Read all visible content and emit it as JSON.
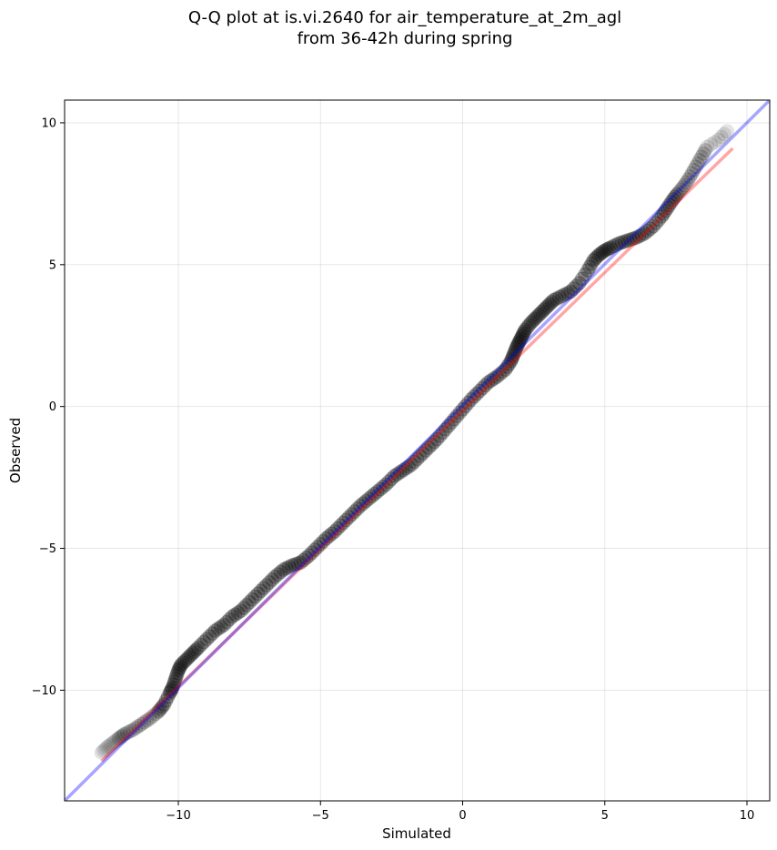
{
  "chart_data": {
    "type": "scatter",
    "title": [
      "Q-Q plot at is.vi.2640 for air_temperature_at_2m_agl",
      "from 36-42h during spring"
    ],
    "xlabel": "Simulated",
    "ylabel": "Observed",
    "xlim": [
      -14,
      10.8
    ],
    "ylim": [
      -13.9,
      10.8
    ],
    "xticks": [
      -10,
      -5,
      0,
      5,
      10
    ],
    "xtick_labels": [
      "−10",
      "−5",
      "0",
      "5",
      "10"
    ],
    "yticks": [
      -10,
      -5,
      0,
      5,
      10
    ],
    "ytick_labels": [
      "−10",
      "−5",
      "0",
      "5",
      "10"
    ],
    "grid": true,
    "point_color": "#000000",
    "quantiles": {
      "x": [
        -12.7,
        -12.5,
        -12.3,
        -12.1,
        -11.9,
        -11.6,
        -11.3,
        -11.0,
        -10.7,
        -10.5,
        -10.3,
        -10.2,
        -10.1,
        -10.0,
        -9.9,
        -9.7,
        -9.5,
        -9.3,
        -9.0,
        -8.7,
        -8.4,
        -8.1,
        -7.8,
        -7.5,
        -7.2,
        -6.9,
        -6.6,
        -6.3,
        -6.0,
        -5.7,
        -5.4,
        -5.1,
        -4.8,
        -4.5,
        -4.2,
        -3.9,
        -3.6,
        -3.3,
        -3.0,
        -2.7,
        -2.4,
        -2.1,
        -1.8,
        -1.5,
        -1.2,
        -0.9,
        -0.6,
        -0.3,
        0.0,
        0.3,
        0.6,
        0.9,
        1.2,
        1.5,
        1.7,
        1.8,
        1.9,
        2.0,
        2.1,
        2.2,
        2.4,
        2.6,
        2.8,
        3.0,
        3.2,
        3.5,
        3.8,
        4.1,
        4.4,
        4.6,
        4.8,
        5.0,
        5.2,
        5.5,
        5.8,
        6.1,
        6.4,
        6.7,
        7.0,
        7.2,
        7.4,
        7.6,
        7.8,
        8.0,
        8.2,
        8.4,
        8.6,
        9.0,
        9.3
      ],
      "y": [
        -12.2,
        -12.0,
        -11.85,
        -11.7,
        -11.55,
        -11.4,
        -11.2,
        -11.0,
        -10.75,
        -10.5,
        -10.1,
        -9.9,
        -9.6,
        -9.3,
        -9.1,
        -8.9,
        -8.7,
        -8.5,
        -8.2,
        -7.9,
        -7.7,
        -7.4,
        -7.2,
        -6.9,
        -6.6,
        -6.3,
        -6.0,
        -5.75,
        -5.6,
        -5.5,
        -5.25,
        -4.95,
        -4.65,
        -4.4,
        -4.1,
        -3.8,
        -3.5,
        -3.25,
        -3.0,
        -2.75,
        -2.45,
        -2.25,
        -2.05,
        -1.75,
        -1.45,
        -1.15,
        -0.8,
        -0.45,
        -0.1,
        0.25,
        0.55,
        0.85,
        1.05,
        1.3,
        1.6,
        1.85,
        2.1,
        2.3,
        2.5,
        2.7,
        2.95,
        3.15,
        3.35,
        3.55,
        3.75,
        3.9,
        4.05,
        4.35,
        4.8,
        5.15,
        5.35,
        5.5,
        5.6,
        5.75,
        5.85,
        5.95,
        6.1,
        6.35,
        6.7,
        7.0,
        7.3,
        7.55,
        7.8,
        8.1,
        8.45,
        8.8,
        9.15,
        9.4,
        9.7
      ]
    },
    "fit_line": {
      "color": "#ff0000",
      "from": [
        -12.7,
        -12.5
      ],
      "to": [
        9.5,
        9.1
      ]
    },
    "reference_line": {
      "color": "#0000ff",
      "from": [
        -14,
        -13.9
      ],
      "to": [
        10.8,
        10.8
      ]
    }
  }
}
